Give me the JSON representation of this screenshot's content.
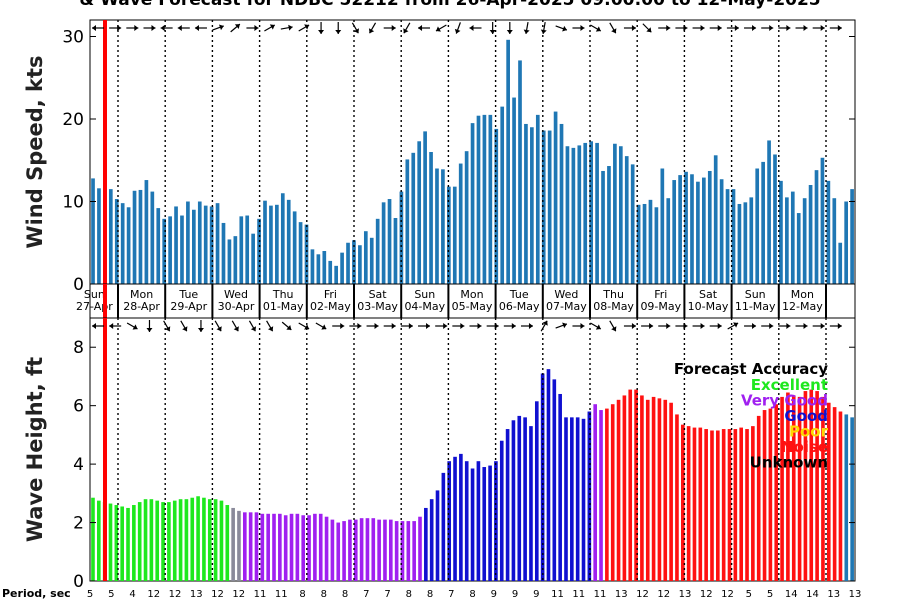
{
  "title": "& Wave Forecast for NDBC 52212 from 26-Apr-2025 09:00:00 to 12-May-2025",
  "period_label": "Period, sec",
  "accuracy_legend": {
    "title": "Forecast Accuracy",
    "items": [
      {
        "label": "Excellent",
        "color": "#1ee81e"
      },
      {
        "label": "Very Good",
        "color": "#a020f0"
      },
      {
        "label": "Good",
        "color": "#1010d0"
      },
      {
        "label": "Poor",
        "color": "#ffd700"
      },
      {
        "label": "Noise",
        "color": "#ff1111"
      },
      {
        "label": "Unknown",
        "color": "#000000"
      }
    ]
  },
  "day_labels": [
    {
      "dow": "Sun",
      "date": "27-Apr"
    },
    {
      "dow": "Mon",
      "date": "28-Apr"
    },
    {
      "dow": "Tue",
      "date": "29-Apr"
    },
    {
      "dow": "Wed",
      "date": "30-Apr"
    },
    {
      "dow": "Thu",
      "date": "01-May"
    },
    {
      "dow": "Fri",
      "date": "02-May"
    },
    {
      "dow": "Sat",
      "date": "03-May"
    },
    {
      "dow": "Sun",
      "date": "04-May"
    },
    {
      "dow": "Mon",
      "date": "05-May"
    },
    {
      "dow": "Tue",
      "date": "06-May"
    },
    {
      "dow": "Wed",
      "date": "07-May"
    },
    {
      "dow": "Thu",
      "date": "08-May"
    },
    {
      "dow": "Fri",
      "date": "09-May"
    },
    {
      "dow": "Sat",
      "date": "10-May"
    },
    {
      "dow": "Sun",
      "date": "11-May"
    },
    {
      "dow": "Mon",
      "date": "12-May"
    }
  ],
  "periods": [
    5,
    5,
    4,
    12,
    12,
    13,
    12,
    12,
    11,
    11,
    8,
    8,
    8,
    7,
    7,
    8,
    8,
    7,
    8,
    9,
    9,
    9,
    11,
    11,
    11,
    13,
    12,
    12,
    13,
    12,
    12,
    5,
    5,
    14,
    14,
    13,
    13
  ],
  "chart_data": [
    {
      "type": "bar",
      "ylabel": "Wind Speed, kts",
      "ylim": [
        0,
        32
      ],
      "yticks": [
        0,
        10,
        20,
        30
      ],
      "color": "#1f77b4",
      "time_step_hours": 3,
      "values": [
        12.8,
        11.6,
        10.3,
        11.5,
        10.3,
        9.8,
        9.3,
        11.3,
        11.4,
        12.6,
        11.2,
        9.2,
        7.9,
        8.2,
        9.4,
        8.3,
        10.0,
        9.0,
        10.0,
        9.5,
        9.4,
        9.8,
        7.4,
        5.4,
        5.8,
        8.2,
        8.3,
        6.1,
        7.9,
        10.1,
        9.5,
        9.6,
        11.0,
        10.2,
        8.8,
        7.5,
        7.2,
        4.2,
        3.6,
        4.0,
        2.8,
        2.2,
        3.8,
        5.0,
        5.3,
        4.7,
        6.4,
        5.6,
        7.9,
        9.9,
        10.3,
        8.0,
        11.2,
        15.1,
        15.9,
        17.3,
        18.5,
        16.0,
        14.0,
        13.9,
        11.8,
        11.8,
        14.6,
        16.1,
        19.5,
        20.4,
        20.5,
        20.5,
        18.8,
        21.5,
        29.6,
        22.6,
        27.1,
        19.4,
        19.0,
        20.5,
        18.6,
        18.6,
        20.9,
        19.4,
        16.7,
        16.5,
        16.8,
        17.1,
        17.3,
        17.1,
        13.7,
        14.3,
        17.0,
        16.7,
        15.5,
        14.5,
        9.6,
        9.7,
        10.2,
        9.3,
        14.0,
        10.4,
        12.6,
        13.2,
        13.6,
        13.3,
        12.4,
        12.9,
        13.7,
        15.6,
        12.7,
        11.5,
        11.5,
        9.7,
        9.9,
        10.5,
        14.0,
        14.8,
        17.4,
        15.7,
        12.5,
        10.5,
        11.2,
        8.6,
        10.4,
        12.0,
        13.8,
        15.3,
        12.5,
        10.4,
        5.0,
        10.0,
        11.5
      ]
    },
    {
      "type": "bar",
      "ylabel": "Wave Height, ft",
      "ylim": [
        0,
        9
      ],
      "yticks": [
        0,
        2,
        4,
        6,
        8
      ],
      "time_step_hours": 3,
      "values": [
        2.85,
        2.75,
        2.7,
        2.65,
        2.6,
        2.55,
        2.5,
        2.6,
        2.7,
        2.8,
        2.8,
        2.75,
        2.7,
        2.7,
        2.75,
        2.8,
        2.8,
        2.85,
        2.9,
        2.85,
        2.8,
        2.8,
        2.75,
        2.6,
        2.5,
        2.4,
        2.35,
        2.35,
        2.35,
        2.3,
        2.3,
        2.3,
        2.3,
        2.25,
        2.3,
        2.3,
        2.25,
        2.25,
        2.3,
        2.3,
        2.2,
        2.1,
        2.0,
        2.05,
        2.1,
        2.1,
        2.15,
        2.15,
        2.15,
        2.1,
        2.1,
        2.1,
        2.05,
        2.05,
        2.05,
        2.05,
        2.2,
        2.5,
        2.8,
        3.1,
        3.7,
        4.1,
        4.25,
        4.35,
        4.1,
        3.85,
        4.1,
        3.9,
        3.95,
        4.1,
        4.8,
        5.2,
        5.5,
        5.65,
        5.6,
        5.3,
        6.15,
        7.1,
        7.25,
        6.9,
        6.4,
        5.6,
        5.6,
        5.6,
        5.55,
        5.8,
        6.05,
        5.85,
        5.9,
        6.05,
        6.2,
        6.35,
        6.55,
        6.55,
        6.35,
        6.2,
        6.3,
        6.25,
        6.2,
        6.1,
        5.7,
        5.35,
        5.3,
        5.25,
        5.25,
        5.2,
        5.15,
        5.15,
        5.2,
        5.2,
        5.2,
        5.25,
        5.2,
        5.3,
        5.65,
        5.85,
        5.9,
        6.05,
        6.3,
        6.45,
        6.35,
        6.3,
        6.5,
        6.55,
        6.5,
        6.3,
        6.1,
        5.95,
        5.8,
        5.7,
        5.6
      ],
      "segments": [
        {
          "color": "#1ee81e",
          "count": 24
        },
        {
          "color": "#8a8a9a",
          "count": 2
        },
        {
          "color": "#a020f0",
          "count": 31
        },
        {
          "color": "#1010d0",
          "count": 29
        },
        {
          "color": "#a020f0",
          "count": 2
        },
        {
          "color": "#ff1111",
          "count": 41
        }
      ]
    }
  ],
  "directions": {
    "wind": [
      180,
      0,
      0,
      0,
      180,
      180,
      180,
      -20,
      -40,
      0,
      -30,
      -10,
      -30,
      90,
      90,
      60,
      120,
      0,
      120,
      180,
      150,
      110,
      180,
      90,
      90,
      100,
      100,
      20,
      0,
      30,
      60,
      0,
      45,
      0,
      0,
      0,
      0,
      0,
      0,
      0,
      0,
      0,
      0,
      0
    ],
    "wave": [
      180,
      180,
      30,
      90,
      60,
      60,
      90,
      60,
      60,
      60,
      60,
      40,
      30,
      30,
      0,
      0,
      0,
      0,
      0,
      0,
      0,
      0,
      0,
      0,
      0,
      0,
      -60,
      -20,
      0,
      30,
      60,
      0,
      0,
      0,
      0,
      0,
      0,
      -30,
      0,
      0,
      0,
      0,
      0,
      0
    ]
  },
  "now_marker_color": "#ff0000"
}
